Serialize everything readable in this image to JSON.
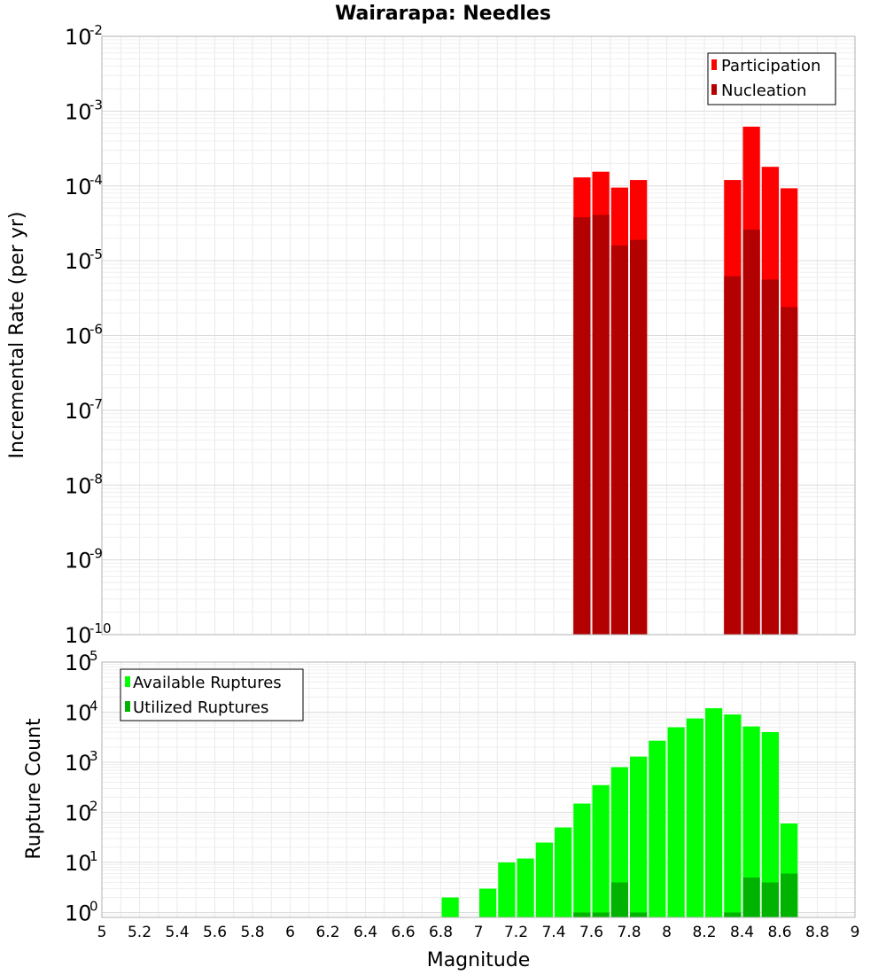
{
  "chart_data": [
    {
      "type": "bar",
      "title": "Wairarapa: Needles",
      "ylabel": "Incremental Rate (per yr)",
      "xlabel": "",
      "yscale": "log",
      "ylim": [
        1e-10,
        0.01
      ],
      "xlim": [
        5,
        9
      ],
      "y_ticks": [
        {
          "base": "10",
          "exp": "-2"
        },
        {
          "base": "10",
          "exp": "-3"
        },
        {
          "base": "10",
          "exp": "-4"
        },
        {
          "base": "10",
          "exp": "-5"
        },
        {
          "base": "10",
          "exp": "-6"
        },
        {
          "base": "10",
          "exp": "-7"
        },
        {
          "base": "10",
          "exp": "-8"
        },
        {
          "base": "10",
          "exp": "-9"
        },
        {
          "base": "10",
          "exp": "-10"
        }
      ],
      "legend": {
        "position": "top-right",
        "entries": [
          "Participation",
          "Nucleation"
        ]
      },
      "grid": true,
      "bar_width": 0.1,
      "series": [
        {
          "name": "Participation",
          "color": "#ff0000",
          "x": [
            7.55,
            7.65,
            7.75,
            7.85,
            8.35,
            8.45,
            8.55,
            8.65
          ],
          "values": [
            0.00013,
            0.000155,
            9.5e-05,
            0.00012,
            0.00012,
            0.00062,
            0.00018,
            9.3e-05
          ]
        },
        {
          "name": "Nucleation",
          "color": "#b30000",
          "x": [
            7.55,
            7.65,
            7.75,
            7.85,
            8.35,
            8.45,
            8.55,
            8.65
          ],
          "values": [
            3.8e-05,
            4.1e-05,
            1.6e-05,
            1.9e-05,
            6.2e-06,
            2.6e-05,
            5.6e-06,
            2.4e-06
          ]
        }
      ]
    },
    {
      "type": "bar",
      "title": "",
      "ylabel": "Rupture Count",
      "xlabel": "Magnitude",
      "yscale": "log",
      "ylim": [
        0.8,
        100000.0
      ],
      "xlim": [
        5,
        9
      ],
      "x_ticks": [
        "5",
        "5.2",
        "5.4",
        "5.6",
        "5.8",
        "6",
        "6.2",
        "6.4",
        "6.6",
        "6.8",
        "7",
        "7.2",
        "7.4",
        "7.6",
        "7.8",
        "8",
        "8.2",
        "8.4",
        "8.6",
        "8.8",
        "9"
      ],
      "y_ticks": [
        {
          "base": "10",
          "exp": "5"
        },
        {
          "base": "10",
          "exp": "4"
        },
        {
          "base": "10",
          "exp": "3"
        },
        {
          "base": "10",
          "exp": "2"
        },
        {
          "base": "10",
          "exp": "1"
        },
        {
          "base": "10",
          "exp": "0"
        }
      ],
      "legend": {
        "position": "top-left",
        "entries": [
          "Available Ruptures",
          "Utilized Ruptures"
        ]
      },
      "grid": true,
      "bar_width": 0.1,
      "series": [
        {
          "name": "Available Ruptures",
          "color": "#00ff00",
          "x": [
            6.85,
            7.05,
            7.15,
            7.25,
            7.35,
            7.45,
            7.55,
            7.65,
            7.75,
            7.85,
            7.95,
            8.05,
            8.15,
            8.25,
            8.35,
            8.45,
            8.55,
            8.65
          ],
          "values": [
            2,
            3,
            10,
            12,
            25,
            50,
            150,
            350,
            800,
            1300,
            2700,
            5000,
            7500,
            12000,
            9000,
            5200,
            4000,
            60
          ]
        },
        {
          "name": "Utilized Ruptures",
          "color": "#00b300",
          "x": [
            7.55,
            7.65,
            7.75,
            7.85,
            8.35,
            8.45,
            8.55,
            8.65
          ],
          "values": [
            1,
            1,
            4,
            1,
            1,
            5,
            4,
            6
          ]
        }
      ]
    }
  ]
}
